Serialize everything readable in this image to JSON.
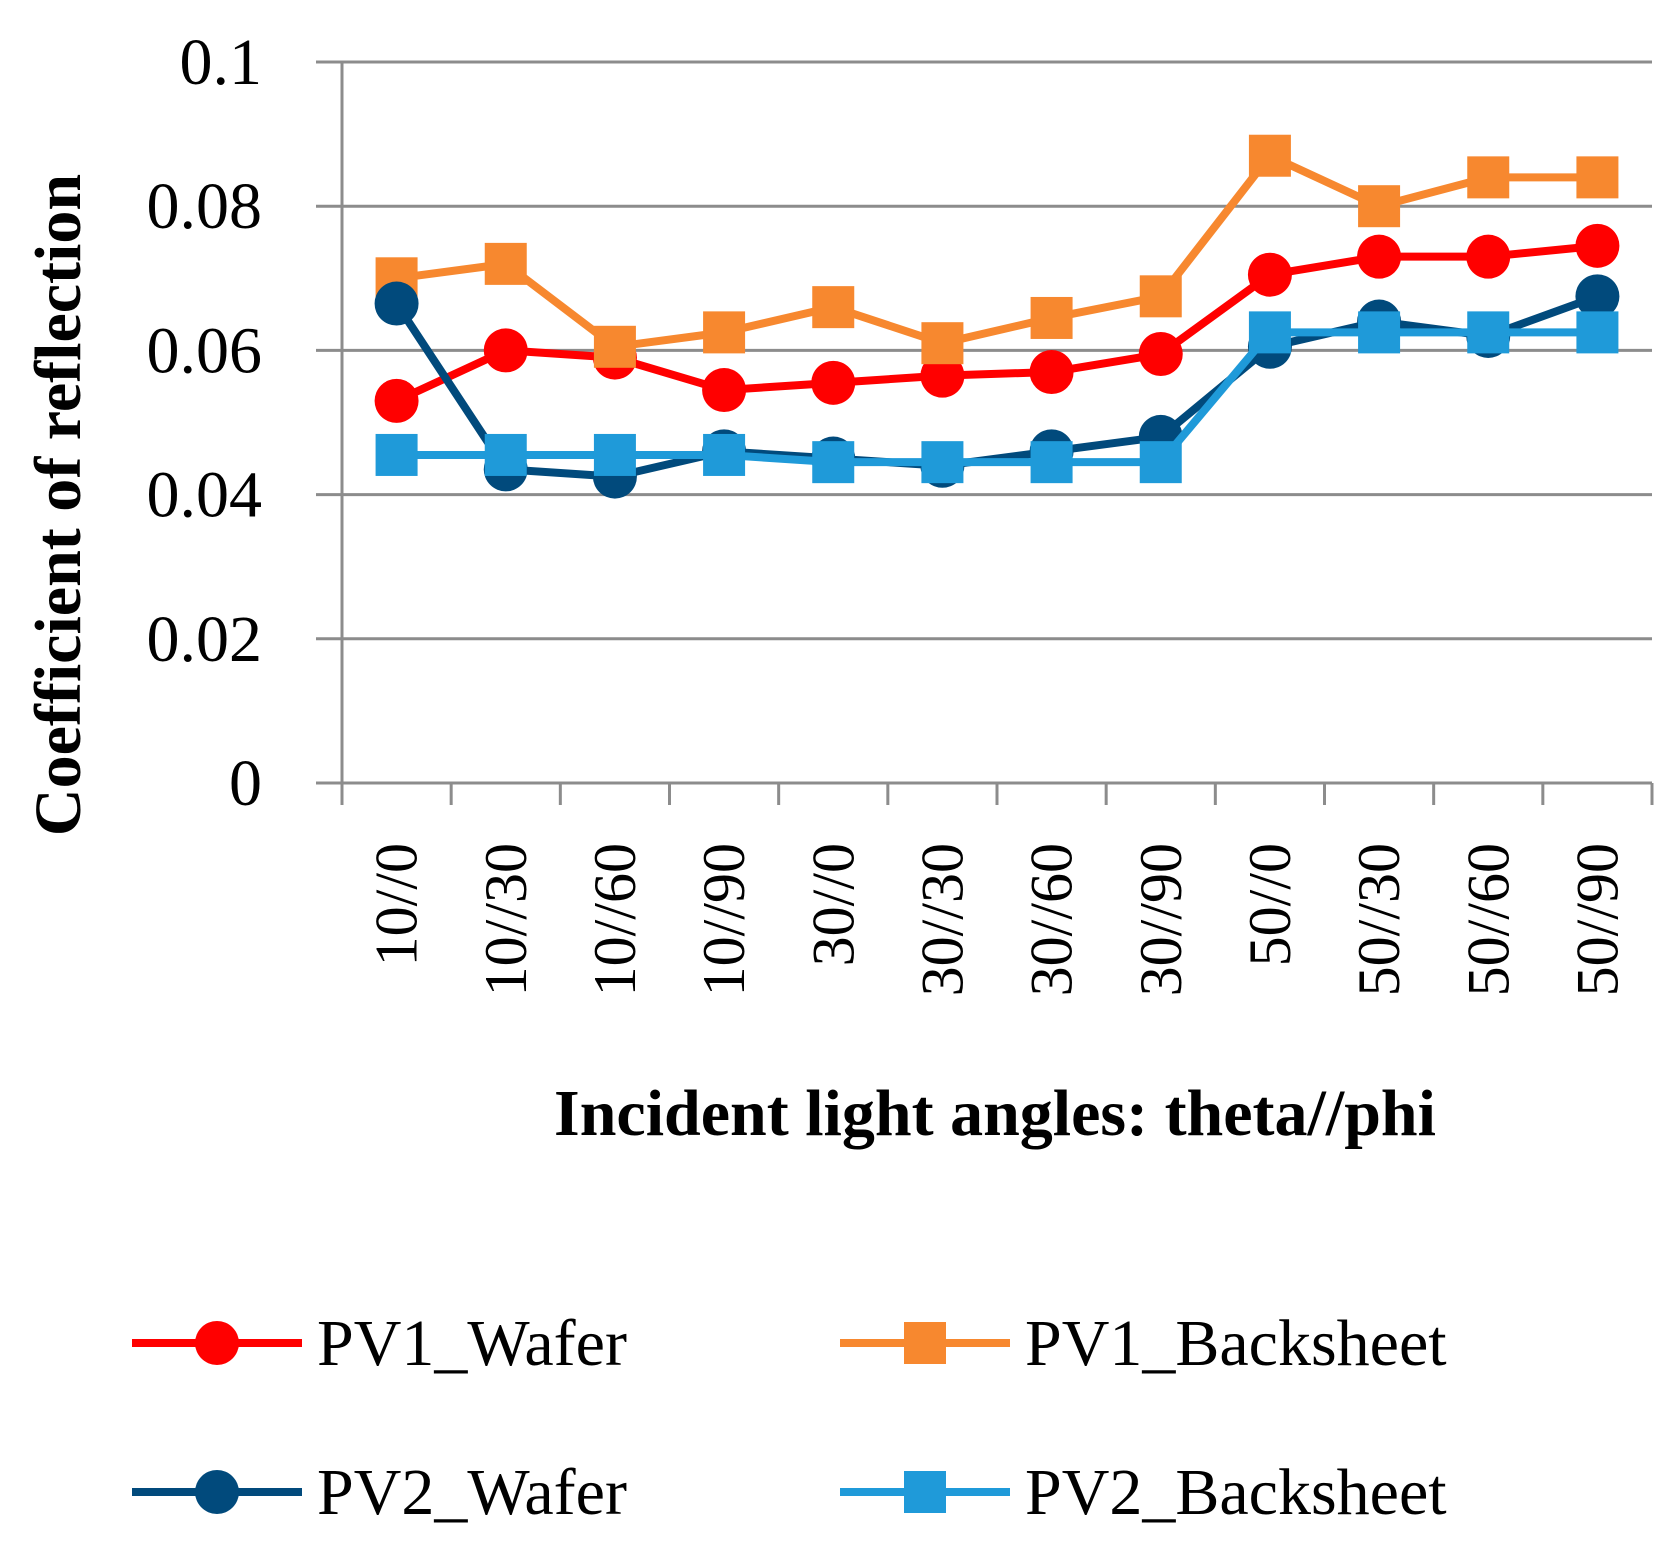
{
  "chart_data": {
    "type": "line",
    "title": "",
    "xlabel": "Incident light angles: theta//phi",
    "ylabel": "Coefficient of reflection",
    "ylim": [
      0,
      0.1
    ],
    "yticks": [
      "0",
      "0.02",
      "0.04",
      "0.06",
      "0.08",
      "0.1"
    ],
    "ytick_values": [
      0,
      0.02,
      0.04,
      0.06,
      0.08,
      0.1
    ],
    "grid": true,
    "legend_position": "bottom",
    "categories": [
      "10//0",
      "10//30",
      "10//60",
      "10//90",
      "30//0",
      "30//30",
      "30//60",
      "30//90",
      "50//0",
      "50//30",
      "50//60",
      "50//90"
    ],
    "series": [
      {
        "name": "PV1_Wafer",
        "color": "#ff0000",
        "marker": "circle",
        "values": [
          0.053,
          0.06,
          0.059,
          0.0545,
          0.0555,
          0.0565,
          0.057,
          0.0595,
          0.0705,
          0.073,
          0.073,
          0.0745
        ]
      },
      {
        "name": "PV1_Backsheet",
        "color": "#f7882f",
        "marker": "square",
        "values": [
          0.07,
          0.072,
          0.0605,
          0.0625,
          0.066,
          0.061,
          0.0645,
          0.0675,
          0.087,
          0.08,
          0.084,
          0.084
        ]
      },
      {
        "name": "PV2_Wafer",
        "color": "#014a7c",
        "marker": "circle",
        "values": [
          0.0665,
          0.0435,
          0.0425,
          0.046,
          0.045,
          0.044,
          0.046,
          0.048,
          0.0605,
          0.064,
          0.062,
          0.0675
        ]
      },
      {
        "name": "PV2_Backsheet",
        "color": "#1f9ad9",
        "marker": "square",
        "values": [
          0.0455,
          0.0455,
          0.0455,
          0.0455,
          0.0445,
          0.0445,
          0.0445,
          0.0445,
          0.0625,
          0.0625,
          0.0625,
          0.0625
        ]
      }
    ]
  }
}
